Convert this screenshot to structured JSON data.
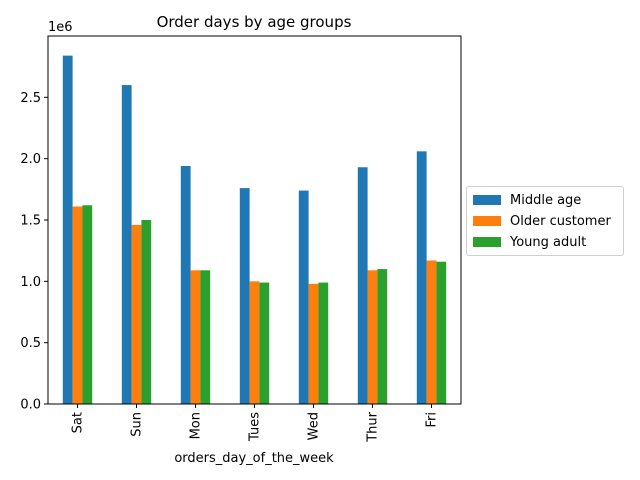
{
  "chart_data": {
    "type": "bar",
    "title": "Order days by age groups",
    "xlabel": "orders_day_of_the_week",
    "ylabel": "",
    "scale_label": "1e6",
    "categories": [
      "Sat",
      "Sun",
      "Mon",
      "Tues",
      "Wed",
      "Thur",
      "Fri"
    ],
    "series": [
      {
        "name": "Middle age",
        "color": "#1f77b4",
        "values": [
          2840000,
          2600000,
          1940000,
          1760000,
          1740000,
          1930000,
          2060000
        ]
      },
      {
        "name": "Older customer",
        "color": "#ff7f0e",
        "values": [
          1610000,
          1460000,
          1090000,
          1000000,
          980000,
          1090000,
          1170000
        ]
      },
      {
        "name": "Young adult",
        "color": "#2ca02c",
        "values": [
          1620000,
          1500000,
          1090000,
          990000,
          990000,
          1100000,
          1160000
        ]
      }
    ],
    "ylim": [
      0,
      3000000
    ],
    "yticks": [
      0,
      500000,
      1000000,
      1500000,
      2000000,
      2500000
    ],
    "ytick_labels": [
      "0.0",
      "0.5",
      "1.0",
      "1.5",
      "2.0",
      "2.5"
    ],
    "grid": false,
    "legend_position": "center-right outside"
  }
}
